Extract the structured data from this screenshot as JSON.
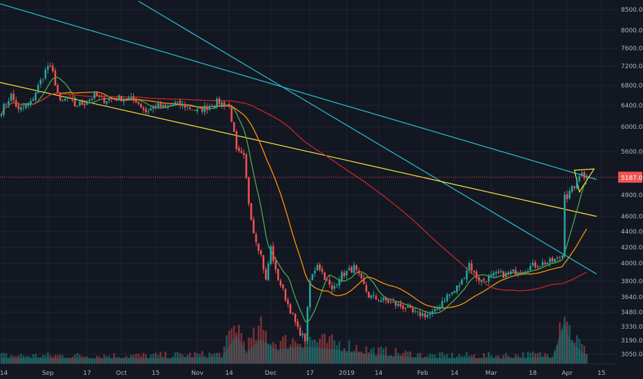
{
  "chart_data": {
    "type": "candlestick",
    "ylim": [
      2980,
      8680
    ],
    "price_ticks": [
      8500,
      8000,
      7600,
      7200,
      6800,
      6400,
      6000,
      5600,
      4900,
      4600,
      4400,
      4200,
      4000,
      3800,
      3640,
      3480,
      3330,
      3190,
      3050
    ],
    "price_labels": [
      "8500.00",
      "8000.00",
      "7600.00",
      "7200.00",
      "6800.00",
      "6400.00",
      "6000.00",
      "5600.00",
      "4900.00",
      "4600.00",
      "4400.00",
      "4200.00",
      "4000.00",
      "3800.00",
      "3640.00",
      "3480.00",
      "3330.00",
      "3190.00",
      "3050.00"
    ],
    "current_price": 5187.03,
    "current_price_label": "5187.03",
    "time_axis": [
      {
        "label": "14",
        "i": 1
      },
      {
        "label": "Sep",
        "i": 19
      },
      {
        "label": "17",
        "i": 35
      },
      {
        "label": "Oct",
        "i": 49
      },
      {
        "label": "15",
        "i": 63
      },
      {
        "label": "Nov",
        "i": 80
      },
      {
        "label": "14",
        "i": 93
      },
      {
        "label": "Dec",
        "i": 110
      },
      {
        "label": "17",
        "i": 126
      },
      {
        "label": "2019",
        "i": 141
      },
      {
        "label": "14",
        "i": 154
      },
      {
        "label": "Feb",
        "i": 172
      },
      {
        "label": "14",
        "i": 185
      },
      {
        "label": "Mar",
        "i": 200
      },
      {
        "label": "18",
        "i": 217
      },
      {
        "label": "Apr",
        "i": 231
      },
      {
        "label": "15",
        "i": 245
      }
    ],
    "close_anchors": [
      [
        0,
        6300
      ],
      [
        4,
        6600
      ],
      [
        7,
        6300
      ],
      [
        12,
        6450
      ],
      [
        17,
        7000
      ],
      [
        19,
        7200
      ],
      [
        21,
        7050
      ],
      [
        24,
        6450
      ],
      [
        27,
        6550
      ],
      [
        30,
        6400
      ],
      [
        34,
        6450
      ],
      [
        38,
        6600
      ],
      [
        42,
        6500
      ],
      [
        47,
        6550
      ],
      [
        51,
        6540
      ],
      [
        55,
        6500
      ],
      [
        59,
        6280
      ],
      [
        63,
        6400
      ],
      [
        67,
        6350
      ],
      [
        71,
        6440
      ],
      [
        75,
        6390
      ],
      [
        80,
        6300
      ],
      [
        84,
        6370
      ],
      [
        88,
        6470
      ],
      [
        93,
        6400
      ],
      [
        96,
        5600
      ],
      [
        99,
        5500
      ],
      [
        101,
        4800
      ],
      [
        103,
        4400
      ],
      [
        106,
        4100
      ],
      [
        108,
        3800
      ],
      [
        110,
        4200
      ],
      [
        112,
        3900
      ],
      [
        115,
        3700
      ],
      [
        118,
        3500
      ],
      [
        121,
        3300
      ],
      [
        124,
        3200
      ],
      [
        126,
        3800
      ],
      [
        129,
        4000
      ],
      [
        131,
        3900
      ],
      [
        133,
        3800
      ],
      [
        135,
        3700
      ],
      [
        138,
        3850
      ],
      [
        141,
        3900
      ],
      [
        144,
        3950
      ],
      [
        147,
        3800
      ],
      [
        150,
        3650
      ],
      [
        153,
        3620
      ],
      [
        157,
        3600
      ],
      [
        161,
        3560
      ],
      [
        165,
        3530
      ],
      [
        168,
        3470
      ],
      [
        171,
        3460
      ],
      [
        174,
        3450
      ],
      [
        177,
        3480
      ],
      [
        180,
        3600
      ],
      [
        182,
        3650
      ],
      [
        185,
        3700
      ],
      [
        188,
        3800
      ],
      [
        191,
        4000
      ],
      [
        193,
        3880
      ],
      [
        196,
        3800
      ],
      [
        200,
        3850
      ],
      [
        203,
        3880
      ],
      [
        206,
        3870
      ],
      [
        209,
        3900
      ],
      [
        212,
        3920
      ],
      [
        215,
        3950
      ],
      [
        218,
        3980
      ],
      [
        221,
        4000
      ],
      [
        224,
        4020
      ],
      [
        227,
        4050
      ],
      [
        229,
        4100
      ],
      [
        230,
        4950
      ],
      [
        231,
        4870
      ],
      [
        233,
        5000
      ],
      [
        235,
        5100
      ],
      [
        237,
        5300
      ],
      [
        238,
        5200
      ]
    ],
    "volume_anchors": [
      [
        0,
        0.12
      ],
      [
        20,
        0.12
      ],
      [
        60,
        0.12
      ],
      [
        90,
        0.14
      ],
      [
        96,
        0.6
      ],
      [
        100,
        0.25
      ],
      [
        106,
        0.5
      ],
      [
        112,
        0.3
      ],
      [
        120,
        0.35
      ],
      [
        126,
        0.35
      ],
      [
        140,
        0.28
      ],
      [
        150,
        0.2
      ],
      [
        175,
        0.12
      ],
      [
        200,
        0.12
      ],
      [
        225,
        0.14
      ],
      [
        230,
        0.9
      ],
      [
        232,
        0.5
      ],
      [
        238,
        0.2
      ]
    ],
    "trendlines": [
      {
        "color": "#26c6da",
        "from": [
          -3,
          8700
        ],
        "to": [
          243,
          5150
        ]
      },
      {
        "color": "#26c6da",
        "from": [
          56,
          8720
        ],
        "to": [
          243,
          3880
        ]
      },
      {
        "color": "#ffeb3b",
        "from": [
          -3,
          6890
        ],
        "to": [
          243,
          4600
        ]
      }
    ],
    "pennant": {
      "color": "#ffeb3b",
      "points": [
        [
          234,
          5300
        ],
        [
          242,
          5320
        ],
        [
          236,
          4950
        ]
      ]
    },
    "moving_averages": [
      {
        "color": "#4caf50",
        "period": 9
      },
      {
        "color": "#ff9800",
        "period": 25
      },
      {
        "color": "#c62828",
        "period": 100
      }
    ],
    "colors": {
      "up": "#26a69a",
      "down": "#ef5350",
      "background": "#131722",
      "grid": "#1f2433",
      "axis_text": "#b2b5be",
      "price_line": "#ef5350"
    }
  }
}
